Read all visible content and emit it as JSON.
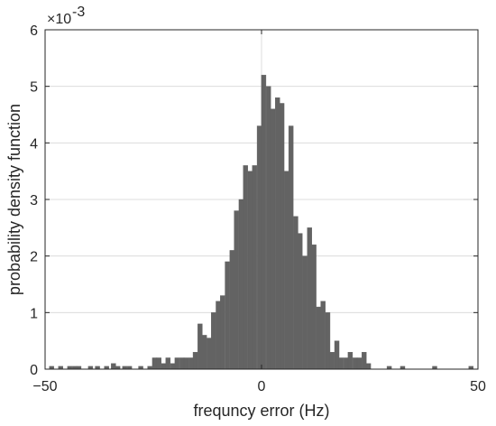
{
  "chart_data": {
    "type": "bar",
    "title": "",
    "xlabel": "frequncy error (Hz)",
    "ylabel": "probability density function",
    "y_exponent": {
      "base": "×10",
      "power": "-3"
    },
    "xlim": [
      -50,
      50
    ],
    "ylim": [
      0,
      0.006
    ],
    "bin_width": 1.05,
    "grid": true,
    "bar_color": "#636363",
    "x_ticks": [
      -50,
      0,
      50
    ],
    "x_tick_labels": [
      "−50",
      "0",
      "50"
    ],
    "y_ticks": [
      0,
      0.001,
      0.002,
      0.003,
      0.004,
      0.005,
      0.006
    ],
    "y_tick_labels": [
      "0",
      "1",
      "2",
      "3",
      "4",
      "5",
      "6"
    ],
    "bins": [
      {
        "x": -48.5,
        "y": 5e-05
      },
      {
        "x": -46.4,
        "y": 5e-05
      },
      {
        "x": -44.3,
        "y": 5e-05
      },
      {
        "x": -43.2,
        "y": 5e-05
      },
      {
        "x": -42.2,
        "y": 5e-05
      },
      {
        "x": -39.5,
        "y": 5e-05
      },
      {
        "x": -37.9,
        "y": 5e-05
      },
      {
        "x": -35.8,
        "y": 5e-05
      },
      {
        "x": -34.2,
        "y": 0.0001
      },
      {
        "x": -33.2,
        "y": 5e-05
      },
      {
        "x": -31.6,
        "y": 5e-05
      },
      {
        "x": -30.5,
        "y": 5e-05
      },
      {
        "x": -27.9,
        "y": 5e-05
      },
      {
        "x": -25.8,
        "y": 5e-05
      },
      {
        "x": -24.7,
        "y": 0.0002
      },
      {
        "x": -23.7,
        "y": 0.0002
      },
      {
        "x": -22.6,
        "y": 0.0001
      },
      {
        "x": -21.6,
        "y": 0.0002
      },
      {
        "x": -20.5,
        "y": 0.0001
      },
      {
        "x": -19.5,
        "y": 0.0002
      },
      {
        "x": -18.4,
        "y": 0.0002
      },
      {
        "x": -17.4,
        "y": 0.0002
      },
      {
        "x": -16.3,
        "y": 0.0002
      },
      {
        "x": -15.3,
        "y": 0.0003
      },
      {
        "x": -14.2,
        "y": 0.0008
      },
      {
        "x": -13.2,
        "y": 0.0006
      },
      {
        "x": -12.1,
        "y": 0.00055
      },
      {
        "x": -11.1,
        "y": 0.001
      },
      {
        "x": -10.0,
        "y": 0.0012
      },
      {
        "x": -9.0,
        "y": 0.0013
      },
      {
        "x": -7.9,
        "y": 0.0019
      },
      {
        "x": -6.8,
        "y": 0.0021
      },
      {
        "x": -5.8,
        "y": 0.0028
      },
      {
        "x": -4.7,
        "y": 0.003
      },
      {
        "x": -3.7,
        "y": 0.0036
      },
      {
        "x": -2.6,
        "y": 0.0035
      },
      {
        "x": -1.6,
        "y": 0.0036
      },
      {
        "x": -0.5,
        "y": 0.0043
      },
      {
        "x": 0.5,
        "y": 0.0052
      },
      {
        "x": 1.6,
        "y": 0.005
      },
      {
        "x": 2.6,
        "y": 0.0046
      },
      {
        "x": 3.7,
        "y": 0.0048
      },
      {
        "x": 4.7,
        "y": 0.0047
      },
      {
        "x": 5.8,
        "y": 0.0035
      },
      {
        "x": 6.8,
        "y": 0.0043
      },
      {
        "x": 7.9,
        "y": 0.0027
      },
      {
        "x": 8.9,
        "y": 0.0024
      },
      {
        "x": 10.0,
        "y": 0.002
      },
      {
        "x": 11.1,
        "y": 0.0025
      },
      {
        "x": 12.1,
        "y": 0.0022
      },
      {
        "x": 13.2,
        "y": 0.0011
      },
      {
        "x": 14.2,
        "y": 0.0012
      },
      {
        "x": 15.3,
        "y": 0.001
      },
      {
        "x": 16.3,
        "y": 0.0003
      },
      {
        "x": 17.4,
        "y": 0.0005
      },
      {
        "x": 18.4,
        "y": 0.0002
      },
      {
        "x": 19.5,
        "y": 0.0002
      },
      {
        "x": 20.5,
        "y": 0.0003
      },
      {
        "x": 21.6,
        "y": 0.0002
      },
      {
        "x": 22.6,
        "y": 0.0002
      },
      {
        "x": 23.7,
        "y": 0.0003
      },
      {
        "x": 24.7,
        "y": 0.0001
      },
      {
        "x": 29.5,
        "y": 5e-05
      },
      {
        "x": 32.6,
        "y": 5e-05
      },
      {
        "x": 40.0,
        "y": 5e-05
      },
      {
        "x": 48.4,
        "y": 5e-05
      }
    ]
  }
}
